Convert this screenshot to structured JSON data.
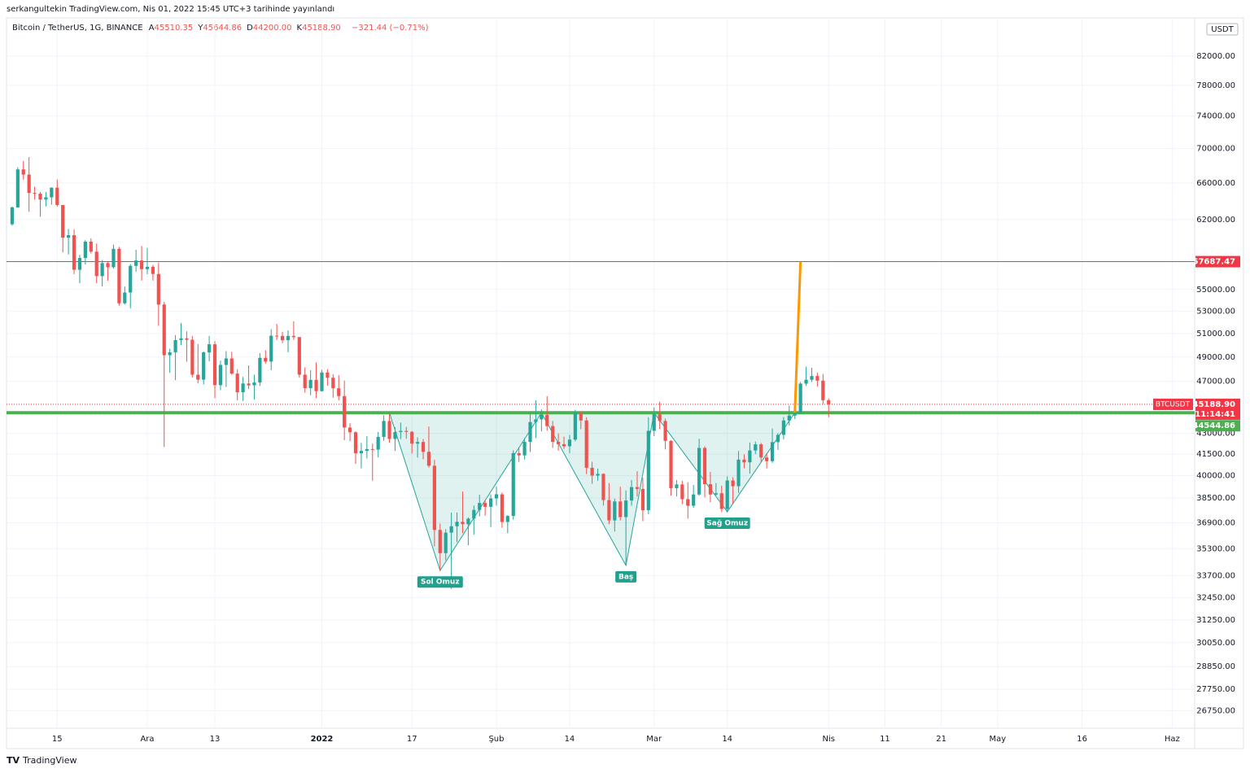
{
  "published": "serkangultekin TradingView.com, Nis 01, 2022 15:45 UTC+3 tarihinde yayınlandı",
  "footer": "TradingView",
  "chart_data": {
    "type": "candlestick",
    "symbol": "Bitcoin / TetherUS, 1G, BINANCE",
    "ohlc_header": [
      {
        "label": "A",
        "text": "45510.35"
      },
      {
        "label": "Y",
        "text": "45644.86"
      },
      {
        "label": "D",
        "text": "44200.00"
      },
      {
        "label": "K",
        "text": "45188.90"
      }
    ],
    "change": "−321.44 (−0.71%)",
    "currency": "USDT",
    "log_scale": true,
    "grid": true,
    "up_color": "#26a69a",
    "down_color": "#ef5350",
    "xlim": [
      "2021-11-06",
      "2022-06-05"
    ],
    "ylim": [
      25960,
      87300
    ],
    "xticks": [
      {
        "value": "2021-11-15",
        "label": "15"
      },
      {
        "value": "2021-12-01",
        "label": "Ara"
      },
      {
        "value": "2021-12-13",
        "label": "13"
      },
      {
        "value": "2022-01-01",
        "label": "2022"
      },
      {
        "value": "2022-01-17",
        "label": "17"
      },
      {
        "value": "2022-02-01",
        "label": "Şub"
      },
      {
        "value": "2022-02-14",
        "label": "14"
      },
      {
        "value": "2022-03-01",
        "label": "Mar"
      },
      {
        "value": "2022-03-14",
        "label": "14"
      },
      {
        "value": "2022-04-01",
        "label": "Nis"
      },
      {
        "value": "2022-04-11",
        "label": "11"
      },
      {
        "value": "2022-04-21",
        "label": "21"
      },
      {
        "value": "2022-05-01",
        "label": "May"
      },
      {
        "value": "2022-05-16",
        "label": "16"
      },
      {
        "value": "2022-06-01",
        "label": "Haz"
      }
    ],
    "yticks": [
      {
        "value": 82000,
        "label": "82000.00"
      },
      {
        "value": 78000,
        "label": "78000.00"
      },
      {
        "value": 74000,
        "label": "74000.00"
      },
      {
        "value": 70000,
        "label": "70000.00"
      },
      {
        "value": 66000,
        "label": "66000.00"
      },
      {
        "value": 62000,
        "label": "62000.00"
      },
      {
        "value": 55000,
        "label": "55000.00"
      },
      {
        "value": 53000,
        "label": "53000.00"
      },
      {
        "value": 51000,
        "label": "51000.00"
      },
      {
        "value": 49000,
        "label": "49000.00"
      },
      {
        "value": 47000,
        "label": "47000.00"
      },
      {
        "value": 43000,
        "label": "43000.00"
      },
      {
        "value": 41500,
        "label": "41500.00"
      },
      {
        "value": 40000,
        "label": "40000.00"
      },
      {
        "value": 38500,
        "label": "38500.00"
      },
      {
        "value": 36900,
        "label": "36900.00"
      },
      {
        "value": 35300,
        "label": "35300.00"
      },
      {
        "value": 33700,
        "label": "33700.00"
      },
      {
        "value": 32450,
        "label": "32450.00"
      },
      {
        "value": 31250,
        "label": "31250.00"
      },
      {
        "value": 30050,
        "label": "30050.00"
      },
      {
        "value": 28850,
        "label": "28850.00"
      },
      {
        "value": 27750,
        "label": "27750.00"
      },
      {
        "value": 26750,
        "label": "26750.00"
      }
    ],
    "levels": [
      {
        "value": 57687.47,
        "color": "#f23645"
      },
      {
        "value": 44544.86,
        "color": "#4caf50"
      }
    ],
    "last_price": {
      "value": 45188.9,
      "label": "45188.90",
      "symbol": "BTCUSDT",
      "countdown": "11:14:41",
      "color": "#f23645"
    },
    "pattern": {
      "color": "#26a69a",
      "points": [
        {
          "x": "2022-01-13",
          "y": 44544.86
        },
        {
          "x": "2022-01-22",
          "y": 34000,
          "label": "Sol Omuz"
        },
        {
          "x": "2022-02-09",
          "y": 44544.86
        },
        {
          "x": "2022-02-24",
          "y": 34300,
          "label": "Baş"
        },
        {
          "x": "2022-03-01",
          "y": 44544.86
        },
        {
          "x": "2022-03-14",
          "y": 37600,
          "label": "Sağ Omuz"
        },
        {
          "x": "2022-03-26",
          "y": 44544.86
        }
      ]
    },
    "target": {
      "color": "#ff9800",
      "x": [
        "2022-03-26",
        "2022-03-27"
      ],
      "y": [
        44544.86,
        57687.47
      ]
    },
    "x": [
      "2021-11-07",
      "2021-11-08",
      "2021-11-09",
      "2021-11-10",
      "2021-11-11",
      "2021-11-12",
      "2021-11-13",
      "2021-11-14",
      "2021-11-15",
      "2021-11-16",
      "2021-11-17",
      "2021-11-18",
      "2021-11-19",
      "2021-11-20",
      "2021-11-21",
      "2021-11-22",
      "2021-11-23",
      "2021-11-24",
      "2021-11-25",
      "2021-11-26",
      "2021-11-27",
      "2021-11-28",
      "2021-11-29",
      "2021-11-30",
      "2021-12-01",
      "2021-12-02",
      "2021-12-03",
      "2021-12-04",
      "2021-12-05",
      "2021-12-06",
      "2021-12-07",
      "2021-12-08",
      "2021-12-09",
      "2021-12-10",
      "2021-12-11",
      "2021-12-12",
      "2021-12-13",
      "2021-12-14",
      "2021-12-15",
      "2021-12-16",
      "2021-12-17",
      "2021-12-18",
      "2021-12-19",
      "2021-12-20",
      "2021-12-21",
      "2021-12-22",
      "2021-12-23",
      "2021-12-24",
      "2021-12-25",
      "2021-12-26",
      "2021-12-27",
      "2021-12-28",
      "2021-12-29",
      "2021-12-30",
      "2021-12-31",
      "2022-01-01",
      "2022-01-02",
      "2022-01-03",
      "2022-01-04",
      "2022-01-05",
      "2022-01-06",
      "2022-01-07",
      "2022-01-08",
      "2022-01-09",
      "2022-01-10",
      "2022-01-11",
      "2022-01-12",
      "2022-01-13",
      "2022-01-14",
      "2022-01-15",
      "2022-01-16",
      "2022-01-17",
      "2022-01-18",
      "2022-01-19",
      "2022-01-20",
      "2022-01-21",
      "2022-01-22",
      "2022-01-23",
      "2022-01-24",
      "2022-01-25",
      "2022-01-26",
      "2022-01-27",
      "2022-01-28",
      "2022-01-29",
      "2022-01-30",
      "2022-01-31",
      "2022-02-01",
      "2022-02-02",
      "2022-02-03",
      "2022-02-04",
      "2022-02-05",
      "2022-02-06",
      "2022-02-07",
      "2022-02-08",
      "2022-02-09",
      "2022-02-10",
      "2022-02-11",
      "2022-02-12",
      "2022-02-13",
      "2022-02-14",
      "2022-02-15",
      "2022-02-16",
      "2022-02-17",
      "2022-02-18",
      "2022-02-19",
      "2022-02-20",
      "2022-02-21",
      "2022-02-22",
      "2022-02-23",
      "2022-02-24",
      "2022-02-25",
      "2022-02-26",
      "2022-02-27",
      "2022-02-28",
      "2022-03-01",
      "2022-03-02",
      "2022-03-03",
      "2022-03-04",
      "2022-03-05",
      "2022-03-06",
      "2022-03-07",
      "2022-03-08",
      "2022-03-09",
      "2022-03-10",
      "2022-03-11",
      "2022-03-12",
      "2022-03-13",
      "2022-03-14",
      "2022-03-15",
      "2022-03-16",
      "2022-03-17",
      "2022-03-18",
      "2022-03-19",
      "2022-03-20",
      "2022-03-21",
      "2022-03-22",
      "2022-03-23",
      "2022-03-24",
      "2022-03-25",
      "2022-03-26",
      "2022-03-27",
      "2022-03-28",
      "2022-03-29",
      "2022-03-30",
      "2022-03-31",
      "2022-04-01"
    ],
    "ohlc": [
      [
        61500,
        63400,
        61350,
        63300
      ],
      [
        63300,
        67790,
        63280,
        67550
      ],
      [
        67550,
        68530,
        66380,
        66950
      ],
      [
        66950,
        69000,
        62820,
        64880
      ],
      [
        64880,
        65580,
        64150,
        64800
      ],
      [
        64800,
        65000,
        62300,
        64150
      ],
      [
        64150,
        65000,
        63400,
        64400
      ],
      [
        64400,
        65500,
        63600,
        65470
      ],
      [
        65470,
        66400,
        63400,
        63560
      ],
      [
        63560,
        63560,
        58600,
        60100
      ],
      [
        60100,
        61000,
        58400,
        60360
      ],
      [
        60360,
        60980,
        56470,
        56890
      ],
      [
        56890,
        58370,
        55600,
        58050
      ],
      [
        58050,
        59850,
        57400,
        59700
      ],
      [
        59700,
        60040,
        58500,
        58680
      ],
      [
        58680,
        59500,
        55600,
        56280
      ],
      [
        56280,
        57850,
        55300,
        57540
      ],
      [
        57540,
        57700,
        55840,
        57140
      ],
      [
        57140,
        59400,
        57000,
        58960
      ],
      [
        58960,
        59170,
        53500,
        53720
      ],
      [
        53720,
        55280,
        53610,
        54720
      ],
      [
        54720,
        57450,
        53250,
        57270
      ],
      [
        57270,
        58870,
        56700,
        57800
      ],
      [
        57800,
        59250,
        55850,
        56950
      ],
      [
        56950,
        59050,
        56460,
        57180
      ],
      [
        57180,
        57380,
        55850,
        56480
      ],
      [
        56480,
        57600,
        51680,
        53600
      ],
      [
        53600,
        53860,
        42000,
        49150
      ],
      [
        49150,
        49700,
        47700,
        49400
      ],
      [
        49400,
        50880,
        47100,
        50440
      ],
      [
        50440,
        51940,
        50000,
        50590
      ],
      [
        50590,
        51200,
        48600,
        50470
      ],
      [
        50470,
        50800,
        47320,
        47540
      ],
      [
        47540,
        50100,
        46850,
        47140
      ],
      [
        47140,
        49480,
        46750,
        49390
      ],
      [
        49390,
        50800,
        48650,
        50080
      ],
      [
        50080,
        50350,
        45670,
        46700
      ],
      [
        46700,
        48700,
        46300,
        48340
      ],
      [
        48340,
        49500,
        46550,
        48880
      ],
      [
        48880,
        49430,
        47540,
        47630
      ],
      [
        47630,
        47990,
        45500,
        46130
      ],
      [
        46130,
        47360,
        45450,
        46830
      ],
      [
        46830,
        48300,
        46400,
        46680
      ],
      [
        46680,
        47540,
        45560,
        46910
      ],
      [
        46910,
        49330,
        46630,
        48930
      ],
      [
        48930,
        49580,
        48450,
        48620
      ],
      [
        48620,
        51380,
        47920,
        50820
      ],
      [
        50820,
        51860,
        50450,
        50800
      ],
      [
        50800,
        51160,
        50180,
        50430
      ],
      [
        50430,
        51280,
        49400,
        50800
      ],
      [
        50800,
        52090,
        50450,
        50700
      ],
      [
        50700,
        50700,
        47310,
        47540
      ],
      [
        47540,
        48150,
        46100,
        46460
      ],
      [
        46460,
        47900,
        45900,
        47120
      ],
      [
        47120,
        48550,
        45680,
        46220
      ],
      [
        46220,
        47940,
        46200,
        47720
      ],
      [
        47720,
        47990,
        46650,
        47290
      ],
      [
        47290,
        47570,
        45700,
        46450
      ],
      [
        46450,
        47500,
        45500,
        45830
      ],
      [
        45830,
        47070,
        42500,
        43430
      ],
      [
        43430,
        43750,
        42430,
        43080
      ],
      [
        43080,
        43150,
        40810,
        41560
      ],
      [
        41560,
        42300,
        40500,
        41730
      ],
      [
        41730,
        42790,
        41200,
        41860
      ],
      [
        41860,
        42250,
        39650,
        41820
      ],
      [
        41820,
        43100,
        41270,
        42740
      ],
      [
        42740,
        44350,
        42450,
        43920
      ],
      [
        43920,
        44450,
        42310,
        42590
      ],
      [
        42590,
        43460,
        41730,
        43100
      ],
      [
        43100,
        43800,
        42580,
        43180
      ],
      [
        43180,
        43480,
        42600,
        43110
      ],
      [
        43110,
        43180,
        41540,
        42250
      ],
      [
        42250,
        42700,
        41250,
        42370
      ],
      [
        42370,
        42580,
        41140,
        41660
      ],
      [
        41660,
        43500,
        40550,
        40680
      ],
      [
        40680,
        41100,
        35440,
        36450
      ],
      [
        36450,
        36840,
        34010,
        35030
      ],
      [
        35030,
        36500,
        34600,
        36280
      ],
      [
        36280,
        37550,
        32950,
        36680
      ],
      [
        36680,
        37550,
        35700,
        36960
      ],
      [
        36960,
        38920,
        36250,
        36810
      ],
      [
        36810,
        37240,
        35510,
        37160
      ],
      [
        37160,
        38000,
        36160,
        37720
      ],
      [
        37720,
        38720,
        37300,
        38170
      ],
      [
        38170,
        38360,
        37350,
        37920
      ],
      [
        37920,
        38750,
        36630,
        38470
      ],
      [
        38470,
        39270,
        38000,
        38740
      ],
      [
        38740,
        38860,
        36590,
        36950
      ],
      [
        36950,
        37390,
        36250,
        37330
      ],
      [
        37330,
        41770,
        37100,
        41570
      ],
      [
        41570,
        42000,
        40950,
        41410
      ],
      [
        41410,
        42650,
        41120,
        42380
      ],
      [
        42380,
        44500,
        41650,
        43840
      ],
      [
        43840,
        45500,
        42660,
        44040
      ],
      [
        44040,
        44800,
        43150,
        44380
      ],
      [
        44380,
        45820,
        43200,
        43540
      ],
      [
        43540,
        43920,
        41940,
        42380
      ],
      [
        42380,
        43000,
        41750,
        42210
      ],
      [
        42210,
        42760,
        41870,
        42060
      ],
      [
        42060,
        42880,
        41570,
        42540
      ],
      [
        42540,
        44770,
        42420,
        44580
      ],
      [
        44580,
        44580,
        43310,
        43960
      ],
      [
        43960,
        44200,
        40100,
        40540
      ],
      [
        40540,
        40960,
        39450,
        40000
      ],
      [
        40000,
        40480,
        39650,
        40120
      ],
      [
        40120,
        40150,
        38000,
        38360
      ],
      [
        38360,
        39490,
        36800,
        37050
      ],
      [
        37050,
        38450,
        36350,
        38270
      ],
      [
        38270,
        39250,
        37050,
        37260
      ],
      [
        37260,
        39000,
        34320,
        38330
      ],
      [
        38330,
        39700,
        38000,
        39220
      ],
      [
        39220,
        40300,
        38600,
        39100
      ],
      [
        39100,
        39850,
        37000,
        37700
      ],
      [
        37700,
        44200,
        37450,
        43190
      ],
      [
        43190,
        44950,
        42800,
        44420
      ],
      [
        44420,
        45400,
        43330,
        43920
      ],
      [
        43920,
        44100,
        41830,
        42450
      ],
      [
        42450,
        42500,
        38650,
        39150
      ],
      [
        39150,
        39700,
        38600,
        39400
      ],
      [
        39400,
        39650,
        38090,
        38420
      ],
      [
        38420,
        39550,
        37160,
        37990
      ],
      [
        37990,
        39360,
        37860,
        38730
      ],
      [
        38730,
        42600,
        38650,
        41940
      ],
      [
        41940,
        42050,
        38540,
        39420
      ],
      [
        39420,
        40250,
        38220,
        38730
      ],
      [
        38730,
        39490,
        38660,
        38810
      ],
      [
        38810,
        39310,
        37580,
        37780
      ],
      [
        37780,
        39950,
        37560,
        39670
      ],
      [
        39670,
        39890,
        38110,
        39280
      ],
      [
        39280,
        41720,
        38830,
        41110
      ],
      [
        41110,
        41480,
        40500,
        40920
      ],
      [
        40920,
        42330,
        40130,
        41760
      ],
      [
        41760,
        42400,
        41500,
        42200
      ],
      [
        42200,
        42300,
        40900,
        41260
      ],
      [
        41260,
        41550,
        40500,
        41000
      ],
      [
        41000,
        43360,
        40880,
        42360
      ],
      [
        42360,
        43020,
        41800,
        42890
      ],
      [
        42890,
        44220,
        42550,
        43960
      ],
      [
        43960,
        45090,
        43580,
        44330
      ],
      [
        44330,
        44820,
        44070,
        44510
      ],
      [
        44510,
        46950,
        44430,
        46820
      ],
      [
        46820,
        48190,
        46650,
        47130
      ],
      [
        47130,
        48100,
        46950,
        47430
      ],
      [
        47430,
        47700,
        46580,
        47060
      ],
      [
        47060,
        47600,
        45200,
        45510
      ],
      [
        45510.35,
        45644.86,
        44200,
        45188.9
      ]
    ]
  }
}
